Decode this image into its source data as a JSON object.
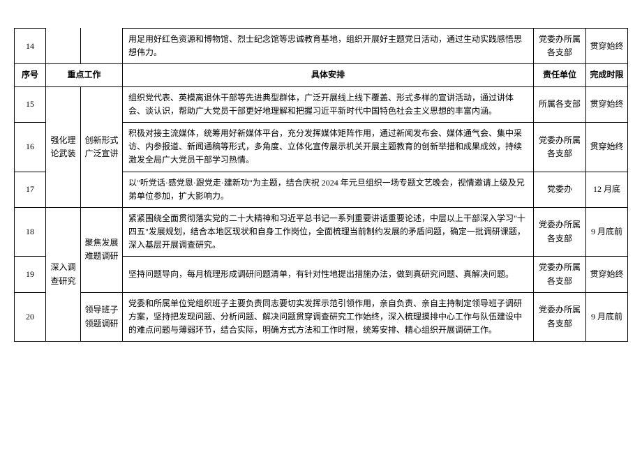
{
  "columns": {
    "seq": "序号",
    "work": "重点工作",
    "detail": "具体安排",
    "dept": "责任单位",
    "deadline": "完成时限"
  },
  "preHeaderRow": {
    "seq": "14",
    "detail": "用足用好红色资源和博物馆、烈士纪念馆等忠诚教育基地，组织开展好主题党日活动，通过生动实践感悟思想伟力。",
    "dept": "党委办所属各支部",
    "deadline": "贯穿始终"
  },
  "groups": [
    {
      "cat1": "强化理论武装",
      "cat2": "创新形式广泛宣讲",
      "rows": [
        {
          "seq": "15",
          "detail": "组织党代表、英模离退休干部等先进典型群体，广泛开展线上线下覆盖、形式多样的宣讲活动，通过讲体会、谈认识，帮助广大党员干部更好地理解和把握习近平新时代中国特色社会主义思想的丰富内涵。",
          "dept": "所属各支部",
          "deadline": "贯穿始终"
        },
        {
          "seq": "16",
          "detail": "积极对接主流媒体，统筹用好新媒体平台，充分发挥媒体矩阵作用，通过新闻发布会、媒体通气会、集中采访、内参报道、新闻通稿等形式，多角度、立体化宣传展示机关开展主题教育的创新举措和成果成效，持续激发全局广大党员干部学习热情。",
          "dept": "党委办所属各支部",
          "deadline": "贯穿始终"
        },
        {
          "seq": "17",
          "detail": "以\"听党话·感党恩·跟党走·建新功\"为主题，结合庆祝 2024 年元旦组织一场专题文艺晚会，视情邀请上级及兄弟单位参加，扩大影响力。",
          "dept": "党委办",
          "deadline": "12 月底"
        }
      ]
    },
    {
      "cat1": "深入调查研究",
      "subgroups": [
        {
          "cat2": "聚焦发展难题调研",
          "rows": [
            {
              "seq": "18",
              "detail": "紧紧围绕全面贯彻落实党的二十大精神和习近平总书记一系列重要讲话重要论述，中层以上干部深入学习\"十四五\"发展规划，结合本地区现状和自身工作岗位，全面梳理当前制约发展的矛盾问题，确定一批调研课题，深入基层开展调查研究。",
              "dept": "党委办所属各支部",
              "deadline": "9 月底前"
            },
            {
              "seq": "19",
              "detail": "坚持问题导向，每月梳理形成调研问题清单，有针对性地提出措施办法，做到真研究问题、真解决问题。",
              "dept": "党委办所属各支部",
              "deadline": "贯穿始终"
            }
          ]
        },
        {
          "cat2": "领导班子领题调研",
          "rows": [
            {
              "seq": "20",
              "detail": "党委和所属单位党组织班子主要负责同志要切实发挥示范引领作用，亲自负责、亲自主持制定领导班子调研方案，坚持把发现问题、分析问题、解决问题贯穿调查研究工作始终，深入梳理摸排中心工作与队伍建设中的难点问题与薄弱环节，结合实际，明确方式方法和工作时限，统筹安排、精心组织开展调研工作。",
              "dept": "党委办所属各支部",
              "deadline": "9 月底前"
            }
          ]
        }
      ]
    }
  ]
}
